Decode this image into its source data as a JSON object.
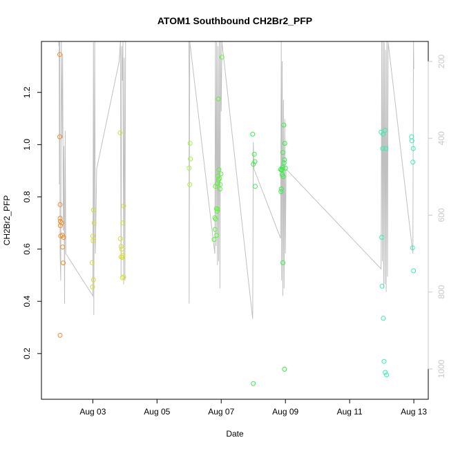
{
  "chart_data": {
    "type": "scatter",
    "title": "ATOM1 Southbound CH2Br2_PFP",
    "xlabel": "Date",
    "ylabel": "CH2Br2_PFP",
    "x_unit": "day of August 2016",
    "xlim": [
      1.4,
      13.45
    ],
    "ylim": [
      0.025,
      1.395
    ],
    "y2lim": [
      1079,
      148
    ],
    "x_ticks": [
      3,
      5,
      7,
      9,
      11,
      13
    ],
    "x_tick_labels": [
      "Aug 03",
      "Aug 05",
      "Aug 07",
      "Aug 09",
      "Aug 11",
      "Aug 13"
    ],
    "y_ticks": [
      0.2,
      0.4,
      0.6,
      0.8,
      1.0,
      1.2
    ],
    "y_tick_labels": [
      "0.2",
      "0.4",
      "0.6",
      "0.8",
      "1.0",
      "1.2"
    ],
    "y2_ticks": [
      200,
      400,
      600,
      800,
      1000
    ],
    "y2_tick_labels": [
      "200",
      "400",
      "600",
      "800",
      "1000"
    ],
    "grid": false,
    "legend": "none",
    "colors": {
      "axis": "#000000",
      "secondary_axis": "#c8c8c8",
      "altitude_trace": "#c0c0c0"
    },
    "series": [
      {
        "color": "#f28c28",
        "points": [
          [
            1.97,
            1.345
          ],
          [
            1.97,
            1.03
          ],
          [
            1.98,
            0.77
          ],
          [
            1.98,
            0.718
          ],
          [
            1.99,
            0.706
          ],
          [
            1.99,
            0.69
          ],
          [
            2.0,
            0.65
          ],
          [
            2.03,
            0.7
          ],
          [
            2.05,
            0.653
          ],
          [
            2.06,
            0.608
          ],
          [
            2.08,
            0.547
          ],
          [
            2.09,
            0.645
          ],
          [
            1.98,
            0.27
          ]
        ]
      },
      {
        "color": "#d4e02a",
        "points": [
          [
            2.98,
            0.548
          ],
          [
            3.0,
            0.65
          ],
          [
            3.01,
            0.632
          ],
          [
            3.02,
            0.75
          ],
          [
            3.02,
            0.482
          ],
          [
            2.99,
            0.455
          ],
          [
            3.04,
            0.7
          ],
          [
            3.85,
            1.045
          ],
          [
            3.86,
            0.64
          ],
          [
            3.88,
            0.61
          ],
          [
            3.88,
            0.57
          ],
          [
            3.9,
            0.6
          ],
          [
            3.92,
            0.568
          ],
          [
            3.94,
            0.575
          ],
          [
            3.93,
            0.7
          ],
          [
            3.96,
            0.765
          ],
          [
            3.92,
            0.49
          ],
          [
            3.96,
            0.493
          ]
        ]
      },
      {
        "color": "#a4f42a",
        "points": [
          [
            6.0,
            0.91
          ],
          [
            6.02,
            0.847
          ],
          [
            6.03,
            1.005
          ],
          [
            6.04,
            0.945
          ]
        ]
      },
      {
        "color": "#5cf23a",
        "points": [
          [
            6.78,
            0.637
          ],
          [
            6.8,
            0.72
          ],
          [
            6.81,
            0.675
          ],
          [
            6.82,
            0.84
          ],
          [
            6.83,
            0.715
          ],
          [
            6.85,
            0.755
          ],
          [
            6.86,
            0.653
          ],
          [
            6.87,
            0.745
          ],
          [
            6.88,
            0.85
          ],
          [
            6.89,
            0.753
          ],
          [
            6.9,
            0.88
          ],
          [
            6.91,
            1.175
          ],
          [
            6.92,
            0.865
          ],
          [
            6.93,
            0.904
          ],
          [
            6.95,
            0.87
          ],
          [
            6.97,
            0.847
          ],
          [
            6.96,
            0.83
          ],
          [
            6.99,
            0.888
          ],
          [
            7.02,
            1.335
          ]
        ]
      },
      {
        "color": "#2ef240",
        "points": [
          [
            7.98,
            1.04
          ],
          [
            8.0,
            0.925
          ],
          [
            8.03,
            0.963
          ],
          [
            8.05,
            0.935
          ],
          [
            8.06,
            0.84
          ],
          [
            8.0,
            0.085
          ],
          [
            8.85,
            0.905
          ],
          [
            8.86,
            0.82
          ],
          [
            8.87,
            0.83
          ],
          [
            8.88,
            0.902
          ],
          [
            8.89,
            0.905
          ],
          [
            8.9,
            0.885
          ],
          [
            8.91,
            0.912
          ],
          [
            8.92,
            0.97
          ],
          [
            8.93,
            0.878
          ],
          [
            8.95,
            1.075
          ],
          [
            8.96,
            0.93
          ],
          [
            8.97,
            0.942
          ],
          [
            8.98,
            1.005
          ],
          [
            9.0,
            0.91
          ],
          [
            8.92,
            0.548
          ],
          [
            8.97,
            0.14
          ]
        ]
      },
      {
        "color": "#2ef2b0",
        "points": [
          [
            11.98,
            1.048
          ],
          [
            12.0,
            0.645
          ],
          [
            12.01,
            0.458
          ],
          [
            12.03,
            0.985
          ],
          [
            12.04,
            1.04
          ],
          [
            12.05,
            0.335
          ],
          [
            12.07,
            0.17
          ],
          [
            12.1,
            1.055
          ],
          [
            12.11,
            0.128
          ],
          [
            12.13,
            0.985
          ],
          [
            12.15,
            0.118
          ],
          [
            12.93,
            1.03
          ],
          [
            12.94,
            1.015
          ],
          [
            12.96,
            0.605
          ],
          [
            12.97,
            0.933
          ],
          [
            12.98,
            0.985
          ],
          [
            12.99,
            0.517
          ]
        ]
      }
    ],
    "altitude_trace": [
      [
        1.94,
        130
      ],
      [
        1.94,
        160
      ],
      [
        1.95,
        110
      ],
      [
        1.96,
        520
      ],
      [
        1.97,
        150
      ],
      [
        1.98,
        700
      ],
      [
        2.0,
        770
      ],
      [
        2.02,
        120
      ],
      [
        2.05,
        400
      ],
      [
        2.06,
        180
      ],
      [
        2.08,
        640
      ],
      [
        2.1,
        420
      ],
      [
        2.12,
        830
      ],
      [
        2.14,
        380
      ],
      [
        2.16,
        700
      ],
      [
        3.0,
        810
      ],
      [
        3.02,
        150
      ],
      [
        3.03,
        860
      ],
      [
        3.06,
        140
      ],
      [
        3.08,
        700
      ],
      [
        3.12,
        480
      ],
      [
        3.82,
        200
      ],
      [
        3.86,
        130
      ],
      [
        3.88,
        760
      ],
      [
        3.9,
        160
      ],
      [
        3.92,
        250
      ],
      [
        3.94,
        140
      ],
      [
        3.96,
        780
      ],
      [
        3.98,
        190
      ],
      [
        4.0,
        770
      ],
      [
        4.02,
        120
      ],
      [
        5.99,
        110
      ],
      [
        6.0,
        240
      ],
      [
        6.0,
        830
      ],
      [
        6.02,
        140
      ],
      [
        6.8,
        700
      ],
      [
        6.82,
        120
      ],
      [
        6.84,
        680
      ],
      [
        6.86,
        150
      ],
      [
        6.88,
        730
      ],
      [
        6.9,
        160
      ],
      [
        6.92,
        720
      ],
      [
        6.94,
        130
      ],
      [
        6.96,
        790
      ],
      [
        6.98,
        140
      ],
      [
        7.0,
        330
      ],
      [
        7.02,
        130
      ],
      [
        7.98,
        870
      ],
      [
        8.0,
        410
      ],
      [
        8.02,
        480
      ],
      [
        8.85,
        660
      ],
      [
        8.87,
        140
      ],
      [
        8.88,
        770
      ],
      [
        8.9,
        200
      ],
      [
        8.92,
        810
      ],
      [
        8.94,
        300
      ],
      [
        8.96,
        790
      ],
      [
        8.98,
        350
      ],
      [
        9.0,
        700
      ],
      [
        9.02,
        480
      ],
      [
        11.98,
        740
      ],
      [
        12.0,
        120
      ],
      [
        12.02,
        720
      ],
      [
        12.04,
        130
      ],
      [
        12.06,
        790
      ],
      [
        12.08,
        150
      ],
      [
        12.1,
        780
      ],
      [
        12.12,
        170
      ],
      [
        12.14,
        800
      ],
      [
        12.16,
        130
      ],
      [
        12.18,
        760
      ],
      [
        12.2,
        150
      ],
      [
        12.97,
        700
      ],
      [
        12.99,
        140
      ],
      [
        13.0,
        220
      ]
    ]
  }
}
